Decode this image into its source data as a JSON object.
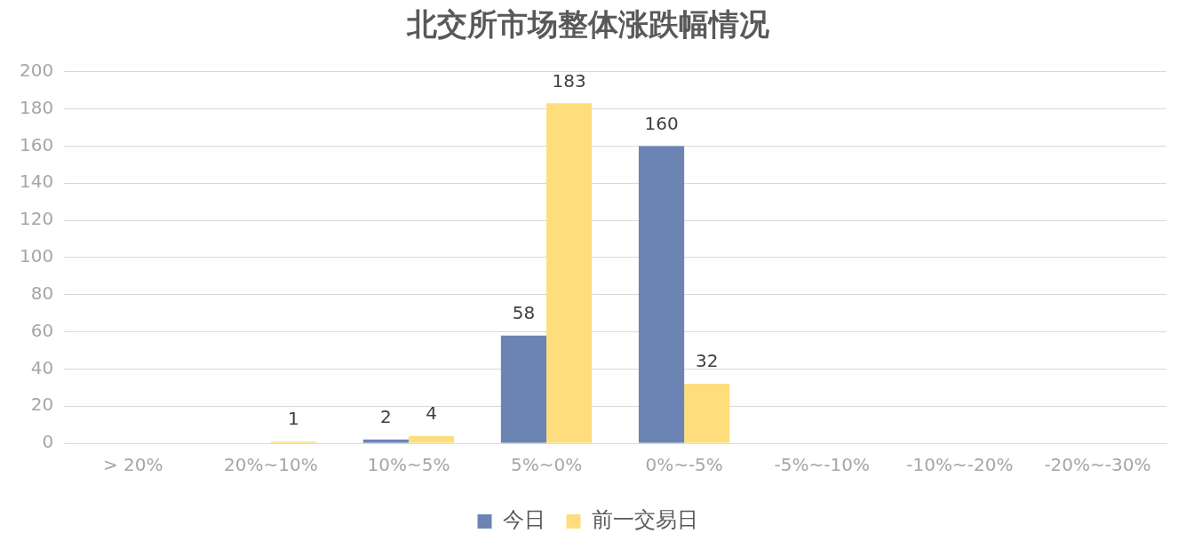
{
  "chart_data": {
    "type": "bar",
    "title": "北交所市场整体涨跌幅情况",
    "categories": [
      "> 20%",
      "20%~10%",
      "10%~5%",
      "5%~0%",
      "0%~-5%",
      "-5%~-10%",
      "-10%~-20%",
      "-20%~-30%"
    ],
    "series": [
      {
        "name": "今日",
        "color": "#6b84b4",
        "values": [
          0,
          0,
          2,
          58,
          160,
          0,
          0,
          0
        ],
        "value_labels": [
          null,
          null,
          "2",
          "58",
          "160",
          null,
          null,
          null
        ]
      },
      {
        "name": "前一交易日",
        "color": "#fedd7d",
        "values": [
          0,
          1,
          4,
          183,
          32,
          0,
          0,
          0
        ],
        "value_labels": [
          null,
          "1",
          "4",
          "183",
          "32",
          null,
          null,
          null
        ]
      }
    ],
    "ylim": [
      0,
      200
    ],
    "yticks": [
      0,
      20,
      40,
      60,
      80,
      100,
      120,
      140,
      160,
      180,
      200
    ],
    "grid": "y",
    "legend": "bottom"
  }
}
